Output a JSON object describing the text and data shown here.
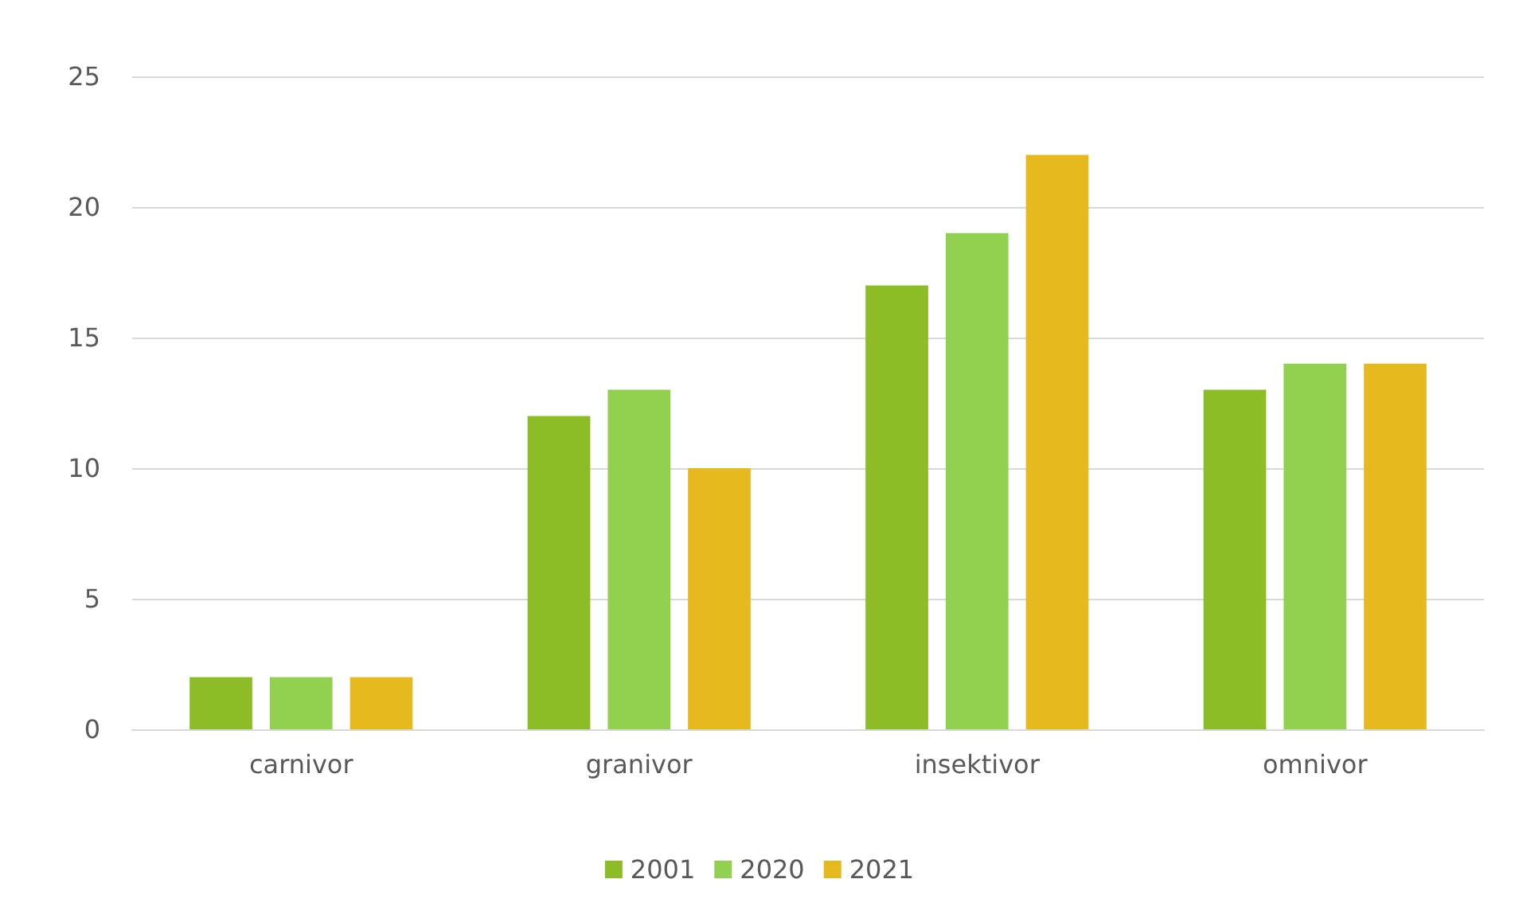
{
  "chart_data": {
    "type": "bar",
    "categories": [
      "carnivor",
      "granivor",
      "insektivor",
      "omnivor"
    ],
    "series": [
      {
        "name": "2001",
        "color": "#8cbd26",
        "values": [
          2,
          12,
          17,
          13
        ]
      },
      {
        "name": "2020",
        "color": "#92d050",
        "values": [
          2,
          13,
          19,
          14
        ]
      },
      {
        "name": "2021",
        "color": "#e6b91e",
        "values": [
          2,
          10,
          22,
          14
        ]
      }
    ],
    "ylim": [
      0,
      25
    ],
    "yticks": [
      0,
      5,
      10,
      15,
      20,
      25
    ],
    "grid": "y",
    "legend": "bottom"
  }
}
